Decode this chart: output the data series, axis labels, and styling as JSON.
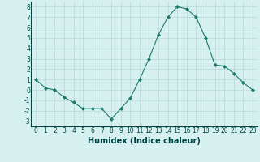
{
  "x": [
    0,
    1,
    2,
    3,
    4,
    5,
    6,
    7,
    8,
    9,
    10,
    11,
    12,
    13,
    14,
    15,
    16,
    17,
    18,
    19,
    20,
    21,
    22,
    23
  ],
  "y": [
    1,
    0.2,
    0.0,
    -0.7,
    -1.2,
    -1.8,
    -1.8,
    -1.8,
    -2.8,
    -1.8,
    -0.8,
    1.0,
    3.0,
    5.3,
    7.0,
    8.0,
    7.8,
    7.0,
    5.0,
    2.4,
    2.3,
    1.6,
    0.7,
    0.0
  ],
  "line_color": "#1a7a6a",
  "marker": "D",
  "marker_size": 2,
  "bg_color": "#d6f0f0",
  "grid_color": "#b8d8d8",
  "xlabel": "Humidex (Indice chaleur)",
  "xlim": [
    -0.5,
    23.5
  ],
  "ylim": [
    -3.5,
    8.5
  ],
  "yticks": [
    -3,
    -2,
    -1,
    0,
    1,
    2,
    3,
    4,
    5,
    6,
    7,
    8
  ],
  "xticks": [
    0,
    1,
    2,
    3,
    4,
    5,
    6,
    7,
    8,
    9,
    10,
    11,
    12,
    13,
    14,
    15,
    16,
    17,
    18,
    19,
    20,
    21,
    22,
    23
  ],
  "tick_fontsize": 5.5,
  "xlabel_fontsize": 7,
  "label_color": "#004444"
}
